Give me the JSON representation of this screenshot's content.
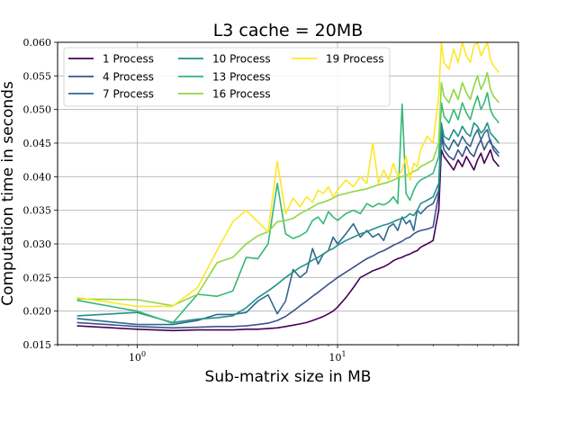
{
  "chart_data": {
    "type": "line",
    "title": "L3 cache = 20MB",
    "xlabel": "Sub-matrix size in MB",
    "ylabel": "Computation time in seconds",
    "xscale": "log",
    "xlim": [
      0.4,
      80
    ],
    "ylim": [
      0.015,
      0.06
    ],
    "xticks": [
      {
        "value": 1,
        "label": "10^0"
      },
      {
        "value": 10,
        "label": "10^1"
      }
    ],
    "yticks": [
      "0.015",
      "0.020",
      "0.025",
      "0.030",
      "0.035",
      "0.040",
      "0.045",
      "0.050",
      "0.055",
      "0.060"
    ],
    "grid": true,
    "legend_position": "upper left",
    "legend_ncol": 3,
    "x": [
      0.5,
      1.0,
      1.5,
      2.0,
      2.5,
      3.0,
      3.5,
      4.0,
      4.5,
      5.0,
      5.5,
      6.0,
      6.5,
      7.0,
      7.5,
      8.0,
      8.5,
      9.0,
      9.5,
      10,
      11,
      12,
      13,
      14,
      15,
      16,
      17,
      18,
      19,
      20,
      21,
      22,
      23,
      24,
      25,
      26,
      28,
      30,
      32,
      33,
      34,
      36,
      38,
      40,
      42,
      44,
      46,
      48,
      50,
      52,
      54,
      56,
      58,
      60,
      62,
      64
    ],
    "series": [
      {
        "name": "1 Process",
        "color": "#440154",
        "values": [
          0.0178,
          0.0173,
          0.0171,
          0.0172,
          0.0172,
          0.0172,
          0.0173,
          0.0173,
          0.0174,
          0.0175,
          0.0177,
          0.0179,
          0.0181,
          0.0183,
          0.0186,
          0.0189,
          0.0192,
          0.0196,
          0.02,
          0.0206,
          0.022,
          0.0235,
          0.025,
          0.0255,
          0.026,
          0.0263,
          0.0266,
          0.027,
          0.0275,
          0.0278,
          0.028,
          0.0283,
          0.0285,
          0.0288,
          0.029,
          0.0295,
          0.03,
          0.0305,
          0.035,
          0.044,
          0.043,
          0.042,
          0.041,
          0.0425,
          0.0415,
          0.043,
          0.042,
          0.041,
          0.0425,
          0.0435,
          0.042,
          0.043,
          0.044,
          0.0425,
          0.042,
          0.0415
        ]
      },
      {
        "name": "4 Process",
        "color": "#3b528b",
        "values": [
          0.0183,
          0.0177,
          0.0175,
          0.0176,
          0.0177,
          0.0177,
          0.0178,
          0.018,
          0.0182,
          0.0186,
          0.0192,
          0.02,
          0.0208,
          0.0215,
          0.0222,
          0.0228,
          0.0234,
          0.024,
          0.0245,
          0.025,
          0.0258,
          0.0265,
          0.0272,
          0.0278,
          0.0282,
          0.0287,
          0.029,
          0.0294,
          0.0298,
          0.0301,
          0.0304,
          0.0308,
          0.031,
          0.0315,
          0.0318,
          0.032,
          0.0322,
          0.0325,
          0.0375,
          0.046,
          0.044,
          0.043,
          0.0425,
          0.044,
          0.043,
          0.0445,
          0.0435,
          0.043,
          0.0445,
          0.0455,
          0.044,
          0.045,
          0.0455,
          0.044,
          0.0435,
          0.043
        ]
      },
      {
        "name": "7 Process",
        "color": "#31688e",
        "values": [
          0.0189,
          0.018,
          0.018,
          0.0186,
          0.0195,
          0.0195,
          0.0198,
          0.0215,
          0.0224,
          0.0196,
          0.0215,
          0.0262,
          0.025,
          0.0258,
          0.0293,
          0.027,
          0.0285,
          0.029,
          0.031,
          0.03,
          0.0315,
          0.033,
          0.031,
          0.032,
          0.031,
          0.0315,
          0.0305,
          0.0325,
          0.033,
          0.032,
          0.034,
          0.033,
          0.0335,
          0.032,
          0.035,
          0.0345,
          0.0355,
          0.036,
          0.038,
          0.047,
          0.045,
          0.044,
          0.0455,
          0.0445,
          0.046,
          0.045,
          0.0445,
          0.046,
          0.047,
          0.0455,
          0.0465,
          0.047,
          0.045,
          0.0445,
          0.044,
          0.0435
        ]
      },
      {
        "name": "10 Process",
        "color": "#21918c",
        "values": [
          0.0193,
          0.0198,
          0.0183,
          0.0188,
          0.019,
          0.0193,
          0.0205,
          0.022,
          0.023,
          0.024,
          0.025,
          0.0258,
          0.0265,
          0.027,
          0.0276,
          0.028,
          0.0285,
          0.029,
          0.0293,
          0.0298,
          0.0305,
          0.031,
          0.0315,
          0.0318,
          0.0322,
          0.0325,
          0.0328,
          0.033,
          0.0333,
          0.0336,
          0.0338,
          0.034,
          0.0345,
          0.0342,
          0.035,
          0.036,
          0.0365,
          0.037,
          0.039,
          0.048,
          0.046,
          0.0455,
          0.047,
          0.046,
          0.0475,
          0.0465,
          0.046,
          0.048,
          0.0475,
          0.0465,
          0.047,
          0.048,
          0.0465,
          0.046,
          0.0455,
          0.045
        ]
      },
      {
        "name": "13 Process",
        "color": "#35b779",
        "values": [
          0.0216,
          0.02,
          0.0182,
          0.0225,
          0.0222,
          0.023,
          0.028,
          0.0278,
          0.03,
          0.039,
          0.0315,
          0.0308,
          0.0312,
          0.0318,
          0.0335,
          0.034,
          0.033,
          0.0348,
          0.034,
          0.0335,
          0.0345,
          0.035,
          0.0345,
          0.036,
          0.0355,
          0.036,
          0.0358,
          0.0362,
          0.037,
          0.036,
          0.0508,
          0.0375,
          0.0365,
          0.038,
          0.039,
          0.0395,
          0.04,
          0.0405,
          0.043,
          0.051,
          0.049,
          0.048,
          0.05,
          0.0485,
          0.051,
          0.0495,
          0.0485,
          0.0505,
          0.052,
          0.05,
          0.051,
          0.0525,
          0.05,
          0.049,
          0.0485,
          0.048
        ]
      },
      {
        "name": "16 Process",
        "color": "#90d743",
        "values": [
          0.0218,
          0.0217,
          0.0208,
          0.0225,
          0.0272,
          0.028,
          0.03,
          0.0312,
          0.0318,
          0.0333,
          0.0335,
          0.0338,
          0.0345,
          0.035,
          0.0355,
          0.036,
          0.0362,
          0.0365,
          0.0368,
          0.0372,
          0.0375,
          0.0378,
          0.038,
          0.0382,
          0.0385,
          0.0388,
          0.039,
          0.0392,
          0.0395,
          0.0398,
          0.04,
          0.0402,
          0.0405,
          0.0408,
          0.041,
          0.0415,
          0.042,
          0.0425,
          0.045,
          0.054,
          0.052,
          0.051,
          0.053,
          0.0515,
          0.054,
          0.0525,
          0.0515,
          0.0535,
          0.055,
          0.053,
          0.054,
          0.0555,
          0.053,
          0.052,
          0.0515,
          0.051
        ]
      },
      {
        "name": "19 Process",
        "color": "#fde725",
        "values": [
          0.022,
          0.0207,
          0.0207,
          0.0235,
          0.029,
          0.0333,
          0.035,
          0.0333,
          0.0318,
          0.0423,
          0.0345,
          0.0368,
          0.0355,
          0.037,
          0.0362,
          0.038,
          0.0375,
          0.0385,
          0.037,
          0.038,
          0.0395,
          0.0385,
          0.04,
          0.039,
          0.045,
          0.039,
          0.041,
          0.0395,
          0.042,
          0.04,
          0.041,
          0.043,
          0.0395,
          0.042,
          0.0415,
          0.044,
          0.046,
          0.045,
          0.052,
          0.06,
          0.057,
          0.056,
          0.059,
          0.057,
          0.06,
          0.058,
          0.057,
          0.0595,
          0.06,
          0.058,
          0.059,
          0.06,
          0.0575,
          0.0565,
          0.056,
          0.0555
        ]
      }
    ]
  }
}
